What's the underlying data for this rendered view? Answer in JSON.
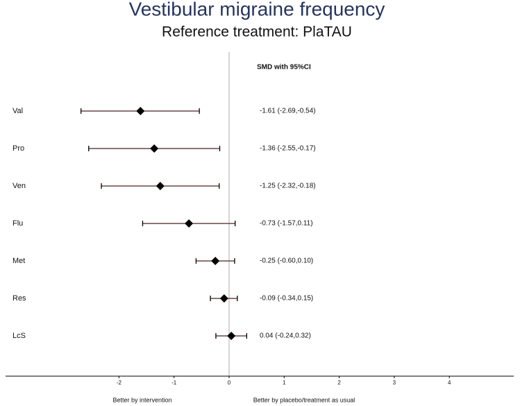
{
  "chart_data": {
    "type": "forest",
    "title": "Vestibular migraine frequency",
    "subtitle": "Reference treatment: PlaTAU",
    "column_header": "SMD with 95%CI",
    "categories": [
      "Val",
      "Pro",
      "Ven",
      "Flu",
      "Met",
      "Res",
      "LcS"
    ],
    "values": [
      -1.61,
      -1.36,
      -1.25,
      -0.73,
      -0.25,
      -0.09,
      0.04
    ],
    "lower": [
      -2.69,
      -2.55,
      -2.32,
      -1.57,
      -0.6,
      -0.34,
      -0.24
    ],
    "upper": [
      -0.54,
      -0.17,
      -0.18,
      0.11,
      0.1,
      0.15,
      0.32
    ],
    "value_labels": [
      "-1.61 (-2.69,-0.54)",
      "-1.36 (-2.55,-0.17)",
      "-1.25 (-2.32,-0.18)",
      "-0.73 (-1.57,0.11)",
      "-0.25 (-0.60,0.10)",
      "-0.09 (-0.34,0.15)",
      "0.04 (-0.24,0.32)"
    ],
    "xlim": [
      -4.06,
      5.17
    ],
    "xticks": [
      -2,
      -1,
      0,
      1,
      2,
      3,
      4
    ],
    "left_label": "Better by intervention",
    "right_label": "Better by placebo/treatment as usual",
    "color": "#000000",
    "ci_color": "#4a2222"
  }
}
